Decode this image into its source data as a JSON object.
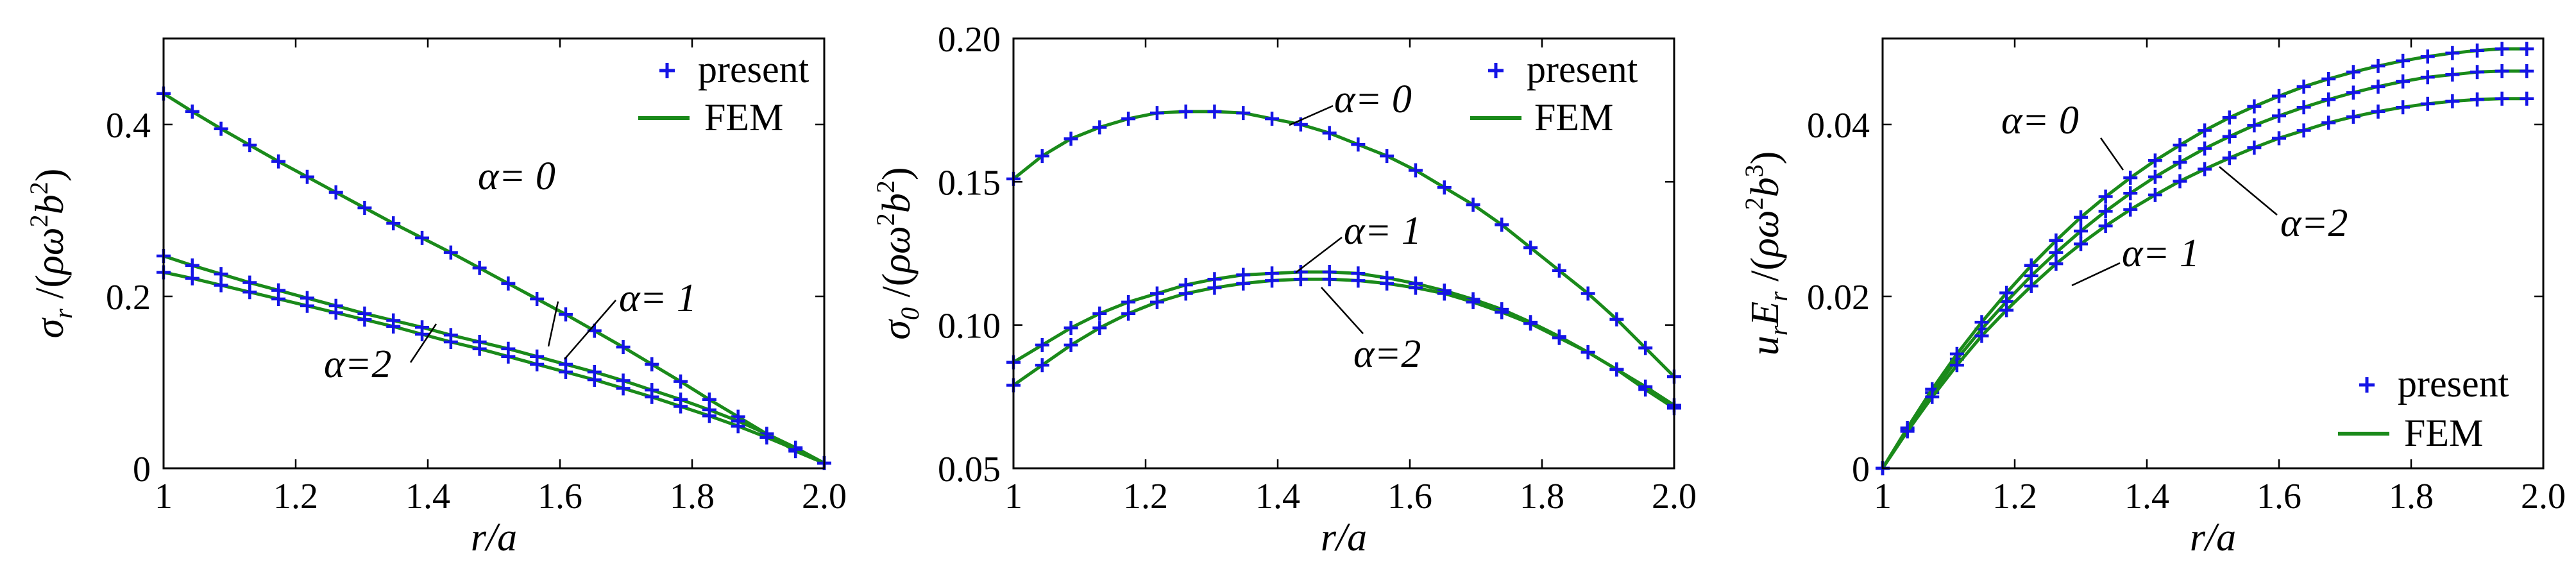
{
  "colors": {
    "marker": "#1414e6",
    "fem_line": "#1a8a1a",
    "axis": "#000000"
  },
  "chart_data": [
    {
      "type": "line",
      "panel": "left",
      "xlabel": "r/a",
      "ylabel": "σr /(ρω²b²)",
      "xlim": [
        1.0,
        2.0
      ],
      "ylim": [
        0.0,
        0.5
      ],
      "xticks": [
        1.0,
        1.2,
        1.4,
        1.6,
        1.8,
        2.0
      ],
      "xtick_labels": [
        "1",
        "1.2",
        "1.4",
        "1.6",
        "1.8",
        "2.0"
      ],
      "yticks": [
        0.0,
        0.2,
        0.4
      ],
      "ytick_labels": [
        "0",
        "0.2",
        "0.4"
      ],
      "legend": {
        "position": "top-right",
        "entries": [
          "present",
          "FEM"
        ]
      },
      "series": [
        {
          "name": "α = 0",
          "x": [
            1.0,
            1.0435,
            1.087,
            1.1304,
            1.1739,
            1.2174,
            1.2609,
            1.3043,
            1.3478,
            1.3913,
            1.4348,
            1.4783,
            1.5217,
            1.5652,
            1.6087,
            1.6522,
            1.6957,
            1.7391,
            1.7826,
            1.8261,
            1.8696,
            1.913,
            1.9565,
            2.0
          ],
          "y": [
            0.436,
            0.415,
            0.395,
            0.376,
            0.357,
            0.339,
            0.321,
            0.303,
            0.285,
            0.268,
            0.251,
            0.233,
            0.215,
            0.197,
            0.179,
            0.16,
            0.141,
            0.121,
            0.101,
            0.08,
            0.06,
            0.04,
            0.02,
            0.006
          ]
        },
        {
          "name": "α = 1",
          "x": [
            1.0,
            1.0435,
            1.087,
            1.1304,
            1.1739,
            1.2174,
            1.2609,
            1.3043,
            1.3478,
            1.3913,
            1.4348,
            1.4783,
            1.5217,
            1.5652,
            1.6087,
            1.6522,
            1.6957,
            1.7391,
            1.7826,
            1.8261,
            1.8696,
            1.913,
            1.9565,
            2.0
          ],
          "y": [
            0.247,
            0.236,
            0.226,
            0.216,
            0.207,
            0.198,
            0.189,
            0.18,
            0.172,
            0.164,
            0.155,
            0.147,
            0.139,
            0.13,
            0.121,
            0.112,
            0.102,
            0.091,
            0.08,
            0.068,
            0.055,
            0.04,
            0.024,
            0.006
          ]
        },
        {
          "name": "α = 2",
          "x": [
            1.0,
            1.0435,
            1.087,
            1.1304,
            1.1739,
            1.2174,
            1.2609,
            1.3043,
            1.3478,
            1.3913,
            1.4348,
            1.4783,
            1.5217,
            1.5652,
            1.6087,
            1.6522,
            1.6957,
            1.7391,
            1.7826,
            1.8261,
            1.8696,
            1.913,
            1.9565,
            2.0
          ],
          "y": [
            0.228,
            0.221,
            0.213,
            0.205,
            0.197,
            0.189,
            0.181,
            0.173,
            0.165,
            0.156,
            0.147,
            0.139,
            0.13,
            0.121,
            0.112,
            0.103,
            0.093,
            0.083,
            0.072,
            0.061,
            0.049,
            0.036,
            0.022,
            0.006
          ]
        }
      ],
      "annotations": [
        "α= 0",
        "α= 1",
        "α=2"
      ]
    },
    {
      "type": "line",
      "panel": "middle",
      "xlabel": "r/a",
      "ylabel": "σθ /(ρω²b²)",
      "xlim": [
        1.0,
        2.0
      ],
      "ylim": [
        0.05,
        0.2
      ],
      "xticks": [
        1.0,
        1.2,
        1.4,
        1.6,
        1.8,
        2.0
      ],
      "xtick_labels": [
        "1",
        "1.2",
        "1.4",
        "1.6",
        "1.8",
        "2.0"
      ],
      "yticks": [
        0.05,
        0.1,
        0.15,
        0.2
      ],
      "ytick_labels": [
        "0.05",
        "0.10",
        "0.15",
        "0.20"
      ],
      "legend": {
        "position": "top-right",
        "entries": [
          "present",
          "FEM"
        ]
      },
      "series": [
        {
          "name": "α = 0",
          "x": [
            1.0,
            1.0435,
            1.087,
            1.1304,
            1.1739,
            1.2174,
            1.2609,
            1.3043,
            1.3478,
            1.3913,
            1.4348,
            1.4783,
            1.5217,
            1.5652,
            1.6087,
            1.6522,
            1.6957,
            1.7391,
            1.7826,
            1.8261,
            1.8696,
            1.913,
            1.9565,
            2.0
          ],
          "y": [
            0.151,
            0.159,
            0.165,
            0.169,
            0.172,
            0.174,
            0.1745,
            0.1745,
            0.174,
            0.172,
            0.17,
            0.167,
            0.163,
            0.159,
            0.154,
            0.148,
            0.142,
            0.135,
            0.127,
            0.119,
            0.111,
            0.102,
            0.092,
            0.082
          ]
        },
        {
          "name": "α = 1",
          "x": [
            1.0,
            1.0435,
            1.087,
            1.1304,
            1.1739,
            1.2174,
            1.2609,
            1.3043,
            1.3478,
            1.3913,
            1.4348,
            1.4783,
            1.5217,
            1.5652,
            1.6087,
            1.6522,
            1.6957,
            1.7391,
            1.7826,
            1.8261,
            1.8696,
            1.913,
            1.9565,
            2.0
          ],
          "y": [
            0.087,
            0.093,
            0.099,
            0.104,
            0.108,
            0.111,
            0.114,
            0.116,
            0.1175,
            0.118,
            0.1185,
            0.1185,
            0.118,
            0.1165,
            0.1145,
            0.112,
            0.109,
            0.1055,
            0.101,
            0.096,
            0.0905,
            0.0845,
            0.0775,
            0.071
          ]
        },
        {
          "name": "α = 2",
          "x": [
            1.0,
            1.0435,
            1.087,
            1.1304,
            1.1739,
            1.2174,
            1.2609,
            1.3043,
            1.3478,
            1.3913,
            1.4348,
            1.4783,
            1.5217,
            1.5652,
            1.6087,
            1.6522,
            1.6957,
            1.7391,
            1.7826,
            1.8261,
            1.8696,
            1.913,
            1.9565,
            2.0
          ],
          "y": [
            0.079,
            0.086,
            0.093,
            0.099,
            0.104,
            0.108,
            0.111,
            0.113,
            0.1145,
            0.1155,
            0.116,
            0.116,
            0.1155,
            0.1145,
            0.113,
            0.111,
            0.108,
            0.1045,
            0.1005,
            0.0955,
            0.0905,
            0.0845,
            0.0785,
            0.072
          ]
        }
      ],
      "annotations": [
        "α= 0",
        "α= 1",
        "α=2"
      ]
    },
    {
      "type": "line",
      "panel": "right",
      "xlabel": "r/a",
      "ylabel": "urEr /(ρω²b³)",
      "xlim": [
        1.0,
        2.0
      ],
      "ylim": [
        0.0,
        0.05
      ],
      "xticks": [
        1.0,
        1.2,
        1.4,
        1.6,
        1.8,
        2.0
      ],
      "xtick_labels": [
        "1",
        "1.2",
        "1.4",
        "1.6",
        "1.8",
        "2.0"
      ],
      "yticks": [
        0.0,
        0.02,
        0.04
      ],
      "ytick_labels": [
        "0",
        "0.02",
        "0.04"
      ],
      "legend": {
        "position": "bottom-right",
        "entries": [
          "present",
          "FEM"
        ]
      },
      "series": [
        {
          "name": "α = 0",
          "x": [
            1.0,
            1.0375,
            1.075,
            1.1125,
            1.15,
            1.1875,
            1.225,
            1.2625,
            1.3,
            1.3375,
            1.375,
            1.4125,
            1.45,
            1.4875,
            1.525,
            1.5625,
            1.6,
            1.6375,
            1.675,
            1.7125,
            1.75,
            1.7875,
            1.825,
            1.8625,
            1.9,
            1.9375,
            1.975
          ],
          "y": [
            0.0,
            0.0045,
            0.0088,
            0.0127,
            0.0162,
            0.0194,
            0.0224,
            0.0251,
            0.0276,
            0.0299,
            0.032,
            0.0339,
            0.0356,
            0.0372,
            0.0386,
            0.0399,
            0.041,
            0.042,
            0.0429,
            0.0437,
            0.0444,
            0.045,
            0.0455,
            0.0458,
            0.0461,
            0.0462,
            0.0462
          ]
        },
        {
          "name": "α = 1",
          "x": [
            1.0,
            1.0375,
            1.075,
            1.1125,
            1.15,
            1.1875,
            1.225,
            1.2625,
            1.3,
            1.3375,
            1.375,
            1.4125,
            1.45,
            1.4875,
            1.525,
            1.5625,
            1.6,
            1.6375,
            1.675,
            1.7125,
            1.75,
            1.7875,
            1.825,
            1.8625,
            1.9,
            1.9375,
            1.975
          ],
          "y": [
            0.0,
            0.0047,
            0.0092,
            0.0133,
            0.017,
            0.0204,
            0.0236,
            0.0265,
            0.0292,
            0.0316,
            0.0338,
            0.0358,
            0.0376,
            0.0393,
            0.0408,
            0.0421,
            0.0433,
            0.0444,
            0.0453,
            0.0461,
            0.0468,
            0.0474,
            0.0479,
            0.0483,
            0.0486,
            0.0488,
            0.0488
          ]
        },
        {
          "name": "α = 2",
          "x": [
            1.0,
            1.0375,
            1.075,
            1.1125,
            1.15,
            1.1875,
            1.225,
            1.2625,
            1.3,
            1.3375,
            1.375,
            1.4125,
            1.45,
            1.4875,
            1.525,
            1.5625,
            1.6,
            1.6375,
            1.675,
            1.7125,
            1.75,
            1.7875,
            1.825,
            1.8625,
            1.9,
            1.9375,
            1.975
          ],
          "y": [
            0.0,
            0.0043,
            0.0083,
            0.012,
            0.0154,
            0.0184,
            0.0212,
            0.0238,
            0.0261,
            0.0282,
            0.0301,
            0.0318,
            0.0334,
            0.0348,
            0.0361,
            0.0373,
            0.0384,
            0.0393,
            0.0402,
            0.0409,
            0.0415,
            0.042,
            0.0424,
            0.0427,
            0.0429,
            0.043,
            0.043
          ]
        }
      ],
      "annotations": [
        "α= 0",
        "α=2",
        "α= 1"
      ]
    }
  ]
}
